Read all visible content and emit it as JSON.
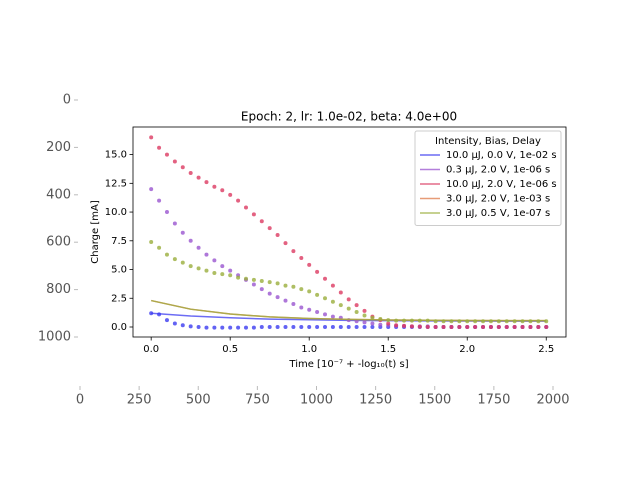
{
  "chart_data": [
    {
      "type": "image-axes",
      "xlim": [
        0,
        2000
      ],
      "xticks": [
        0,
        250,
        500,
        750,
        1000,
        1250,
        1500,
        1750,
        2000
      ],
      "ylim": [
        0,
        1000
      ],
      "yticks": [
        0,
        200,
        400,
        600,
        800,
        1000
      ],
      "y_inverted": true
    },
    {
      "type": "scatter",
      "title": "Epoch: 2, lr: 1.0e-02, beta: 4.0e+00",
      "x_label": "Time [10⁻⁷ + -log₁₀(t) s]",
      "y_label": "Charge [mA]",
      "xlim": [
        -0.115,
        2.625
      ],
      "xticks": [
        {
          "value": 0,
          "label": "0.0"
        },
        0.5,
        {
          "value": 1,
          "label": "1.0"
        },
        1.5,
        {
          "value": 2,
          "label": "2.0"
        },
        2.5
      ],
      "ylim": [
        -0.87,
        17.4
      ],
      "yticks": [
        {
          "value": 0,
          "label": "0.0"
        },
        2.5,
        {
          "value": 5,
          "label": "5.0"
        },
        7.5,
        {
          "value": 10,
          "label": "10.0"
        },
        12.5,
        {
          "value": 15,
          "label": "15.0"
        }
      ],
      "legend_title": "Intensity, Bias, Delay",
      "legend": "upper right",
      "x": [
        0,
        0.05,
        0.1,
        0.15,
        0.2,
        0.25,
        0.3,
        0.35,
        0.4,
        0.45,
        0.5,
        0.55,
        0.6,
        0.65,
        0.7,
        0.75,
        0.8,
        0.85,
        0.9,
        0.95,
        1,
        1.05,
        1.1,
        1.15,
        1.2,
        1.25,
        1.3,
        1.35,
        1.4,
        1.45,
        1.5,
        1.55,
        1.6,
        1.65,
        1.7,
        1.75,
        1.8,
        1.85,
        1.9,
        1.95,
        2,
        2.05,
        2.1,
        2.15,
        2.2,
        2.25,
        2.3,
        2.35,
        2.4,
        2.45,
        2.5
      ],
      "fit_x": [
        0,
        0.25,
        0.5,
        0.75,
        1,
        1.25,
        1.5,
        1.75,
        2,
        2.25,
        2.5
      ],
      "series": [
        {
          "name": "10.0 μJ, 0.0 V, 1e-02 s",
          "color": "#3b3bf0",
          "values": [
            1.2,
            1.1,
            0.6,
            0.3,
            0.15,
            0.05,
            0,
            -0.05,
            -0.05,
            -0.05,
            -0.05,
            -0.05,
            -0.05,
            -0.05,
            0,
            0,
            0,
            0,
            0,
            0,
            0,
            0,
            0,
            0,
            0,
            0,
            0,
            0,
            0,
            0,
            0,
            0,
            0,
            0,
            0,
            0,
            0,
            0,
            0,
            0,
            0,
            0,
            0,
            0,
            0,
            0,
            0,
            0,
            0,
            0,
            0
          ],
          "fit": [
            1.2,
            0.96,
            0.8,
            0.69,
            0.63,
            0.58,
            0.55,
            0.53,
            0.52,
            0.51,
            0.51
          ]
        },
        {
          "name": "0.3 μJ, 2.0 V, 1e-06 s",
          "color": "#9a55d0",
          "values": [
            12,
            11,
            10,
            9,
            8.2,
            7.5,
            6.9,
            6.3,
            5.8,
            5.3,
            4.9,
            4.5,
            4.1,
            3.7,
            3.3,
            2.9,
            2.6,
            2.3,
            2,
            1.7,
            1.5,
            1.3,
            1.1,
            0.9,
            0.8,
            0.6,
            0.5,
            0.4,
            0.3,
            0.2,
            0.15,
            0.1,
            0.1,
            0.05,
            0.05,
            0.05,
            0,
            0,
            0,
            0,
            0,
            0,
            0,
            0,
            0,
            0,
            0,
            0,
            0,
            0,
            0
          ]
        },
        {
          "name": "10.0 μJ, 2.0 V, 1e-06 s",
          "color": "#dc3a62",
          "values": [
            16.5,
            15.6,
            15,
            14.4,
            13.9,
            13.4,
            13,
            12.6,
            12.2,
            11.9,
            11.5,
            11,
            10.4,
            9.8,
            9.2,
            8.6,
            8,
            7.3,
            6.6,
            6,
            5.4,
            4.8,
            4.2,
            3.6,
            3,
            2.4,
            1.9,
            1.4,
            0.9,
            0.6,
            0.3,
            0.15,
            0.1,
            0.05,
            0.02,
            0,
            0,
            0,
            0,
            0,
            0,
            0,
            0,
            0,
            0,
            0,
            0,
            0,
            0,
            0,
            0
          ]
        },
        {
          "name": "3.0 μJ, 2.0 V, 1e-03 s",
          "color": "#e07b4a",
          "fit": [
            2.3,
            1.55,
            1.13,
            0.88,
            0.74,
            0.66,
            0.61,
            0.59,
            0.57,
            0.56,
            0.56
          ]
        },
        {
          "name": "3.0 μJ, 0.5 V, 1e-07 s",
          "color": "#9aae3c",
          "values": [
            7.4,
            6.9,
            6.3,
            5.9,
            5.6,
            5.3,
            5.1,
            4.9,
            4.7,
            4.6,
            4.5,
            4.3,
            4.2,
            4.1,
            4,
            3.9,
            3.8,
            3.6,
            3.5,
            3.3,
            3.1,
            2.8,
            2.5,
            2.2,
            1.9,
            1.6,
            1.3,
            1,
            0.8,
            0.7,
            0.6,
            0.55,
            0.55,
            0.55,
            0.55,
            0.55,
            0.5,
            0.5,
            0.5,
            0.5,
            0.5,
            0.5,
            0.5,
            0.5,
            0.5,
            0.5,
            0.5,
            0.5,
            0.5,
            0.5,
            0.5
          ],
          "fit": [
            2.3,
            1.55,
            1.13,
            0.88,
            0.74,
            0.66,
            0.61,
            0.59,
            0.57,
            0.56,
            0.56
          ]
        }
      ]
    }
  ]
}
